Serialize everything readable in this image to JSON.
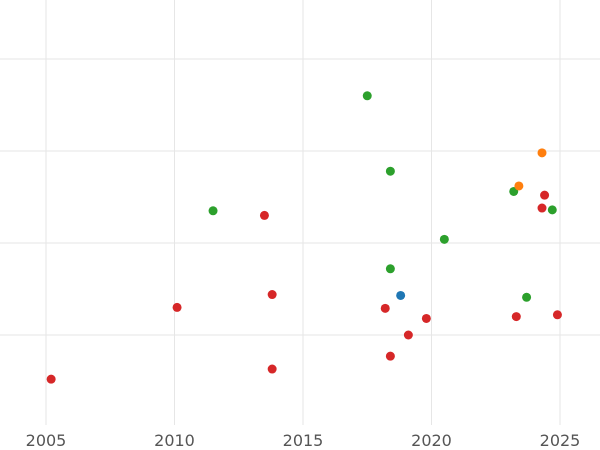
{
  "chart_data": {
    "type": "scatter",
    "xlim": [
      2005,
      2025
    ],
    "x_ticks": [
      {
        "value": 2005,
        "label": "2005"
      },
      {
        "value": 2010,
        "label": "2010"
      },
      {
        "value": 2015,
        "label": "2015"
      },
      {
        "value": 2020,
        "label": "2020"
      },
      {
        "value": 2025,
        "label": "2025"
      }
    ],
    "y_ticks": [
      {
        "value": 1
      },
      {
        "value": 2
      },
      {
        "value": 3
      },
      {
        "value": 4
      }
    ],
    "ylim": [
      0,
      4.5
    ],
    "grid": true,
    "legend": "none",
    "colors": {
      "blue": "#1f77b4",
      "orange": "#ff7f0e",
      "green": "#2ca02c",
      "red": "#d62728",
      "grid": "#e6e6e6",
      "tick_text": "#555555"
    },
    "series": [
      {
        "color": "#2ca02c",
        "points": [
          {
            "x": 2017.5,
            "y": 3.6
          },
          {
            "x": 2018.4,
            "y": 2.78
          },
          {
            "x": 2011.5,
            "y": 2.35
          },
          {
            "x": 2023.2,
            "y": 2.56
          },
          {
            "x": 2024.7,
            "y": 2.36
          },
          {
            "x": 2020.5,
            "y": 2.04
          },
          {
            "x": 2018.4,
            "y": 1.72
          },
          {
            "x": 2023.7,
            "y": 1.41
          }
        ]
      },
      {
        "color": "#ff7f0e",
        "points": [
          {
            "x": 2024.3,
            "y": 2.98
          },
          {
            "x": 2023.4,
            "y": 2.62
          }
        ]
      },
      {
        "color": "#d62728",
        "points": [
          {
            "x": 2024.4,
            "y": 2.52
          },
          {
            "x": 2024.3,
            "y": 2.38
          },
          {
            "x": 2013.5,
            "y": 2.3
          },
          {
            "x": 2013.8,
            "y": 1.44
          },
          {
            "x": 2010.1,
            "y": 1.3
          },
          {
            "x": 2018.2,
            "y": 1.29
          },
          {
            "x": 2019.8,
            "y": 1.18
          },
          {
            "x": 2023.3,
            "y": 1.2
          },
          {
            "x": 2024.9,
            "y": 1.22
          },
          {
            "x": 2019.1,
            "y": 1.0
          },
          {
            "x": 2018.4,
            "y": 0.77
          },
          {
            "x": 2013.8,
            "y": 0.63
          },
          {
            "x": 2005.2,
            "y": 0.52
          }
        ]
      },
      {
        "color": "#1f77b4",
        "points": [
          {
            "x": 2018.8,
            "y": 1.43
          }
        ]
      }
    ]
  }
}
